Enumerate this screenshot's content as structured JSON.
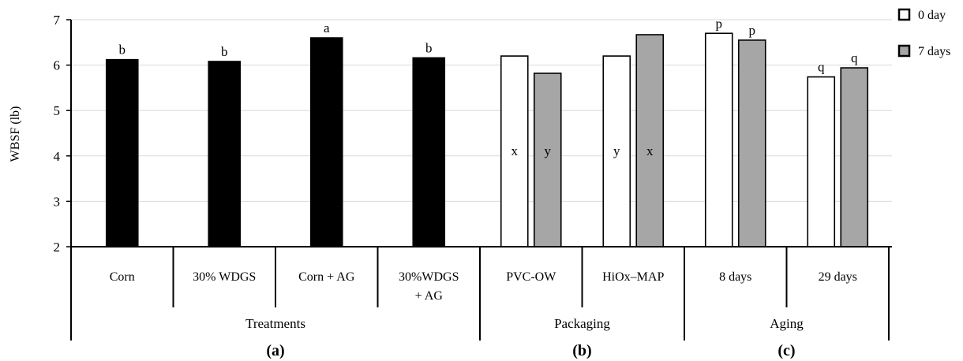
{
  "chart_data": {
    "type": "bar",
    "ylabel": "WBSF (lb)",
    "ylim": [
      2,
      7
    ],
    "yticks": [
      2,
      3,
      4,
      5,
      6,
      7
    ],
    "grid": true,
    "legend_position": "top-right",
    "legend": [
      {
        "name": "0 day",
        "color": "#ffffff"
      },
      {
        "name": "7 days",
        "color": "#a6a6a6"
      }
    ],
    "groups": [
      {
        "label": "Treatments",
        "panel": "(a)",
        "categories": [
          {
            "label": "Corn",
            "bars": [
              {
                "series": "treatment",
                "value": 6.12,
                "color": "#000000",
                "sig": "b"
              }
            ]
          },
          {
            "label": "30% WDGS",
            "bars": [
              {
                "series": "treatment",
                "value": 6.08,
                "color": "#000000",
                "sig": "b"
              }
            ]
          },
          {
            "label": "Corn + AG",
            "bars": [
              {
                "series": "treatment",
                "value": 6.6,
                "color": "#000000",
                "sig": "a"
              }
            ]
          },
          {
            "label": "30%WDGS\n+ AG",
            "bars": [
              {
                "series": "treatment",
                "value": 6.16,
                "color": "#000000",
                "sig": "b"
              }
            ]
          }
        ]
      },
      {
        "label": "Packaging",
        "panel": "(b)",
        "categories": [
          {
            "label": "PVC-OW",
            "bars": [
              {
                "series": "0 day",
                "value": 6.2,
                "color": "#ffffff",
                "sig": "x",
                "sig_pos": "inside"
              },
              {
                "series": "7 days",
                "value": 5.82,
                "color": "#a6a6a6",
                "sig": "y",
                "sig_pos": "inside"
              }
            ]
          },
          {
            "label": "HiOx–MAP",
            "bars": [
              {
                "series": "0 day",
                "value": 6.2,
                "color": "#ffffff",
                "sig": "y",
                "sig_pos": "inside"
              },
              {
                "series": "7 days",
                "value": 6.67,
                "color": "#a6a6a6",
                "sig": "x",
                "sig_pos": "inside"
              }
            ]
          }
        ]
      },
      {
        "label": "Aging",
        "panel": "(c)",
        "categories": [
          {
            "label": "8 days",
            "bars": [
              {
                "series": "0 day",
                "value": 6.7,
                "color": "#ffffff",
                "sig": "p"
              },
              {
                "series": "7 days",
                "value": 6.55,
                "color": "#a6a6a6",
                "sig": "p"
              }
            ]
          },
          {
            "label": "29 days",
            "bars": [
              {
                "series": "0 day",
                "value": 5.74,
                "color": "#ffffff",
                "sig": "q"
              },
              {
                "series": "7 days",
                "value": 5.94,
                "color": "#a6a6a6",
                "sig": "q"
              }
            ]
          }
        ]
      }
    ]
  }
}
